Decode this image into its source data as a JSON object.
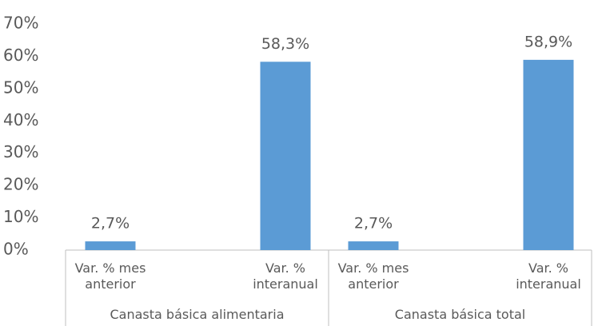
{
  "chart_data": {
    "type": "bar",
    "groups": [
      "Canasta básica alimentaria",
      "Canasta básica total"
    ],
    "categories": [
      "Var. % mes anterior",
      "Var. % interanual",
      "Var. % mes anterior",
      "Var. % interanual"
    ],
    "values": [
      2.7,
      58.3,
      2.7,
      58.9
    ],
    "value_labels": [
      "2,7%",
      "58,3%",
      "2,7%",
      "58,9%"
    ],
    "color": "#5b9bd5",
    "ylim": [
      0,
      70
    ],
    "yticks": [
      {
        "value": 0,
        "label": "0%"
      },
      {
        "value": 10,
        "label": "10%"
      },
      {
        "value": 20,
        "label": "20%"
      },
      {
        "value": 30,
        "label": "30%"
      },
      {
        "value": 40,
        "label": "40%"
      },
      {
        "value": 50,
        "label": "50%"
      },
      {
        "value": 60,
        "label": "60%"
      },
      {
        "value": 70,
        "label": "70%"
      }
    ]
  }
}
